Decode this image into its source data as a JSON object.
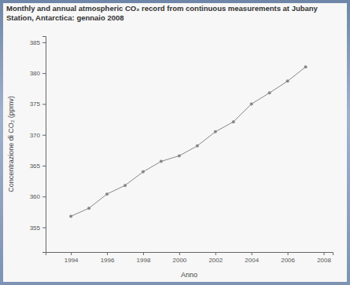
{
  "chart_data": {
    "type": "line",
    "title": "Monthly and annual atmospheric CO₂ record from continuous measurements at Jubany Station, Antarctica: gennaio 2008",
    "x_label": "Anno",
    "y_label": "Concentrazione di CO₂ (ppmv)",
    "x": [
      1994,
      1995,
      1996,
      1997,
      1998,
      1999,
      2000,
      2001,
      2002,
      2003,
      2004,
      2005,
      2006,
      2007
    ],
    "values": [
      356.8,
      358.1,
      360.4,
      361.8,
      364.0,
      365.7,
      366.6,
      368.2,
      370.5,
      372.1,
      375.0,
      376.8,
      378.7,
      381.0
    ],
    "color": "#888888",
    "marker": "circle",
    "line_style": "solid",
    "grid": false,
    "xlim": [
      1992.6,
      2008.5
    ],
    "xticks": [
      1994,
      1996,
      1998,
      2000,
      2002,
      2004,
      2006,
      2008
    ],
    "ylim": [
      351,
      386
    ],
    "yticks": [
      355,
      360,
      365,
      370,
      375,
      380,
      385
    ]
  }
}
